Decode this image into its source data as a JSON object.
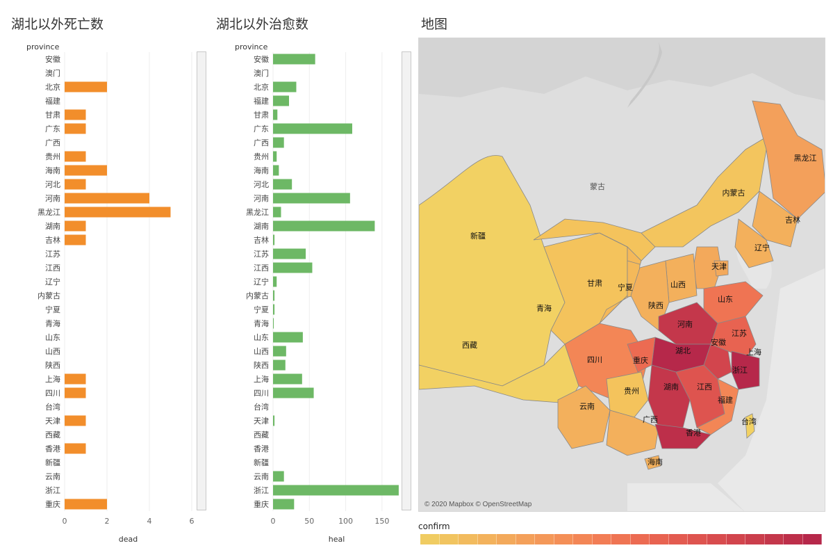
{
  "titles": {
    "dead": "湖北以外死亡数",
    "heal": "湖北以外治愈数",
    "map": "地图"
  },
  "chart_data": [
    {
      "type": "bar",
      "orientation": "horizontal",
      "title": "湖北以外死亡数",
      "ylabel": "province",
      "xlabel": "dead",
      "categories": [
        "安徽",
        "澳门",
        "北京",
        "福建",
        "甘肃",
        "广东",
        "广西",
        "贵州",
        "海南",
        "河北",
        "河南",
        "黑龙江",
        "湖南",
        "吉林",
        "江苏",
        "江西",
        "辽宁",
        "内蒙古",
        "宁夏",
        "青海",
        "山东",
        "山西",
        "陕西",
        "上海",
        "四川",
        "台湾",
        "天津",
        "西藏",
        "香港",
        "新疆",
        "云南",
        "浙江",
        "重庆"
      ],
      "values": [
        0,
        0,
        2,
        0,
        1,
        1,
        0,
        1,
        2,
        1,
        4,
        5,
        1,
        1,
        0,
        0,
        0,
        0,
        0,
        0,
        0,
        0,
        0,
        1,
        1,
        0,
        1,
        0,
        1,
        0,
        0,
        0,
        2
      ],
      "xlim": [
        0,
        6
      ],
      "xticks": [
        0,
        2,
        4,
        6
      ],
      "grid": true
    },
    {
      "type": "bar",
      "orientation": "horizontal",
      "title": "湖北以外治愈数",
      "ylabel": "province",
      "xlabel": "heal",
      "categories": [
        "安徽",
        "澳门",
        "北京",
        "福建",
        "甘肃",
        "广东",
        "广西",
        "贵州",
        "海南",
        "河北",
        "河南",
        "黑龙江",
        "湖南",
        "吉林",
        "江苏",
        "江西",
        "辽宁",
        "内蒙古",
        "宁夏",
        "青海",
        "山东",
        "山西",
        "陕西",
        "上海",
        "四川",
        "台湾",
        "天津",
        "西藏",
        "香港",
        "新疆",
        "云南",
        "浙江",
        "重庆"
      ],
      "values": [
        58,
        0,
        32,
        22,
        6,
        109,
        15,
        5,
        8,
        26,
        106,
        11,
        140,
        2,
        45,
        54,
        5,
        2,
        2,
        1,
        41,
        18,
        17,
        40,
        56,
        0,
        2,
        0,
        0,
        0,
        15,
        173,
        29
      ],
      "xlim": [
        0,
        175
      ],
      "xticks": [
        0,
        50,
        100,
        150
      ],
      "grid": true
    }
  ],
  "colors": {
    "dead_bar": "#f28e2b",
    "heal_bar": "#6db865",
    "gridline": "#eeeeee",
    "map_background": "#dcdcdc"
  },
  "map": {
    "labels": [
      "蒙古",
      "黑龙江",
      "内蒙古",
      "吉林",
      "辽宁",
      "新疆",
      "天津",
      "甘肃",
      "宁夏",
      "山西",
      "山东",
      "青海",
      "陕西",
      "河南",
      "江苏",
      "西藏",
      "安徽",
      "湖北",
      "上海",
      "四川",
      "重庆",
      "浙江",
      "湖南",
      "江西",
      "贵州",
      "云南",
      "福建",
      "广西",
      "台湾",
      "香港",
      "海南"
    ],
    "attribution": "© 2020 Mapbox © OpenStreetMap"
  },
  "legend": {
    "title": "confirm",
    "colors": [
      "#f0cc62",
      "#f1c460",
      "#f2bb5e",
      "#f3b25c",
      "#f3a95b",
      "#f4a05a",
      "#f49859",
      "#f48f57",
      "#f38656",
      "#f27d55",
      "#ef7453",
      "#ec6b52",
      "#e86351",
      "#e35b50",
      "#de544f",
      "#d84c4e",
      "#d2454d",
      "#cb3e4c",
      "#c4374b",
      "#bd2f4a",
      "#b6284a"
    ]
  }
}
